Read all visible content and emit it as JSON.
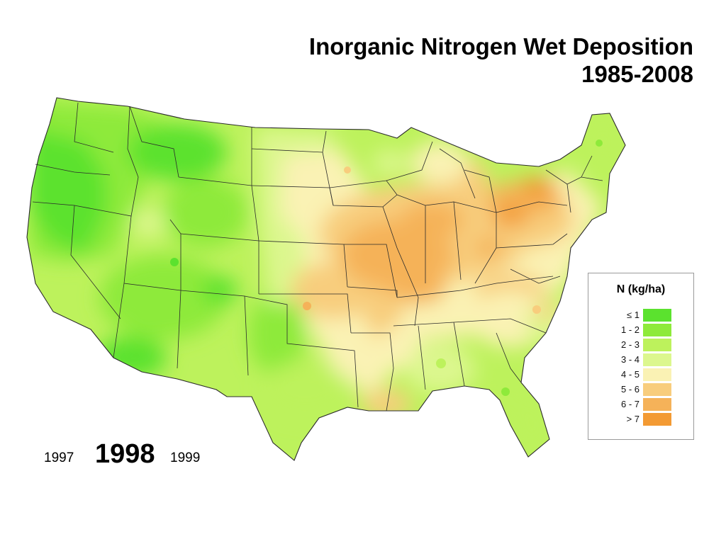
{
  "title": {
    "line1": "Inorganic Nitrogen Wet Deposition",
    "line2": "1985-2008"
  },
  "legend": {
    "title": "N  (kg/ha)",
    "classes": [
      {
        "label": "≤ 1",
        "color": "#5be22e"
      },
      {
        "label": "1 - 2",
        "color": "#8eea3a"
      },
      {
        "label": "2 - 3",
        "color": "#bdf25c"
      },
      {
        "label": "3 - 4",
        "color": "#dcf78e"
      },
      {
        "label": "4 - 5",
        "color": "#faf2b4"
      },
      {
        "label": "5 - 6",
        "color": "#f8cd7d"
      },
      {
        "label": "6 - 7",
        "color": "#f5b259"
      },
      {
        "label": "> 7",
        "color": "#f39a33"
      }
    ]
  },
  "years": {
    "previous": "1997",
    "current": "1998",
    "next": "1999"
  },
  "map": {
    "region": "Contiguous United States",
    "state_borders": "visible"
  }
}
